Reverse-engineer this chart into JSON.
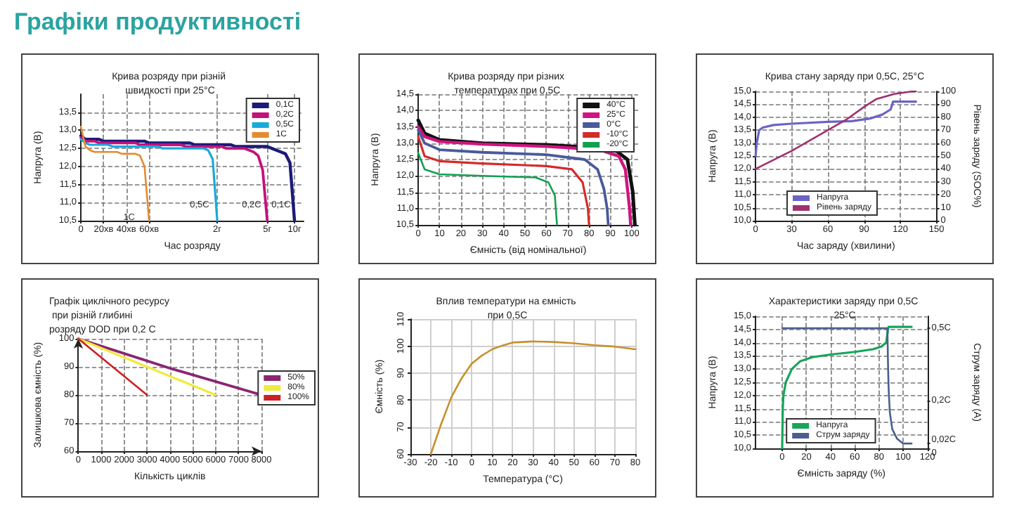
{
  "chart_data": [
    {
      "type": "line",
      "title": "Крива розряду при різній швидкості при 25°C",
      "xlabel": "Час розряду",
      "ylabel": "Напруга (В)",
      "ylim": [
        10.5,
        14
      ],
      "categories": [
        "0",
        null,
        null,
        null,
        null,
        "20хв",
        null,
        null,
        null,
        null,
        "40хв",
        null,
        null,
        null,
        null,
        "60хв",
        null,
        null,
        null,
        null,
        null,
        null,
        null,
        null,
        null,
        null,
        null,
        null,
        null,
        null,
        "2г",
        null,
        null,
        null,
        null,
        null,
        null,
        null,
        null,
        null,
        null,
        "5г",
        null,
        null,
        null,
        null,
        null,
        "10г",
        null,
        null
      ],
      "yticks": [
        {
          "value": 10.5,
          "label": "10,5"
        },
        {
          "value": 11,
          "label": "11,0"
        },
        {
          "value": 11.5,
          "label": "11,5"
        },
        {
          "value": 12,
          "label": "12,0"
        },
        {
          "value": 12.5,
          "label": "12,5"
        },
        {
          "value": 13,
          "label": "13,0"
        },
        {
          "value": 13.5,
          "label": "13,5"
        }
      ],
      "grid": true,
      "legend": "top right",
      "series": [
        {
          "name": "0,1C",
          "color": "#1c1a78",
          "values": [
            12.85,
            12.75,
            12.75,
            12.75,
            12.75,
            12.7,
            12.7,
            12.7,
            12.7,
            12.7,
            12.7,
            12.7,
            12.7,
            12.7,
            12.7,
            12.65,
            12.65,
            12.65,
            12.65,
            12.65,
            12.65,
            12.65,
            12.65,
            12.65,
            12.65,
            12.6,
            12.6,
            12.6,
            12.6,
            12.6,
            12.6,
            12.6,
            12.6,
            12.6,
            12.55,
            12.55,
            12.55,
            12.55,
            12.55,
            12.55,
            12.55,
            12.55,
            12.5,
            12.45,
            12.4,
            12.35,
            12.1,
            10.5,
            null,
            null
          ]
        },
        {
          "name": "0,2C",
          "color": "#c4117c",
          "values": [
            12.8,
            12.7,
            12.7,
            12.7,
            12.65,
            12.65,
            12.65,
            12.65,
            12.65,
            12.65,
            12.65,
            12.65,
            12.65,
            12.6,
            12.6,
            12.6,
            12.6,
            12.6,
            12.6,
            12.6,
            12.6,
            12.6,
            12.6,
            12.55,
            12.55,
            12.55,
            12.55,
            12.55,
            12.55,
            12.55,
            12.55,
            12.55,
            12.5,
            12.5,
            12.5,
            12.5,
            12.5,
            12.45,
            12.4,
            12.3,
            11.9,
            10.5,
            null,
            null,
            null,
            null,
            null,
            null,
            null,
            null
          ]
        },
        {
          "name": "0,5C",
          "color": "#19a9dc",
          "values": [
            12.75,
            12.65,
            12.6,
            12.6,
            12.6,
            12.6,
            12.6,
            12.55,
            12.55,
            12.55,
            12.55,
            12.55,
            12.55,
            12.55,
            12.55,
            12.55,
            12.55,
            12.55,
            12.5,
            12.5,
            12.5,
            12.5,
            12.5,
            12.5,
            12.5,
            12.5,
            12.5,
            12.5,
            12.45,
            12.2,
            10.5,
            null,
            null,
            null,
            null,
            null,
            null,
            null,
            null,
            null,
            null,
            null,
            null,
            null,
            null,
            null,
            null,
            null,
            null,
            null
          ]
        },
        {
          "name": "1C",
          "color": "#e68a2e",
          "values": [
            13.1,
            12.55,
            12.45,
            12.4,
            12.4,
            12.4,
            12.4,
            12.4,
            12.4,
            12.35,
            12.35,
            12.35,
            12.35,
            12.3,
            12.0,
            10.5,
            null,
            null,
            null,
            null,
            null,
            null,
            null,
            null,
            null,
            null,
            null,
            null,
            null,
            null,
            null,
            null,
            null,
            null,
            null,
            null,
            null,
            null,
            null,
            null,
            null,
            null,
            null,
            null,
            null,
            null,
            null,
            null,
            null,
            null
          ]
        }
      ],
      "annotations": [
        "Графіки продуктивності",
        "1C",
        "0,5C",
        "0,2C",
        "0,1C"
      ]
    },
    {
      "type": "line",
      "title": "Крива розряду при різних температурах при 0,5C",
      "xlabel": "Ємність (від номінальної)",
      "ylabel": "Напруга (В)",
      "xlim": [
        0,
        103
      ],
      "ylim": [
        10.5,
        14.5
      ],
      "xticks": [
        0,
        10,
        20,
        30,
        40,
        50,
        60,
        70,
        80,
        90,
        100
      ],
      "yticks": [
        {
          "value": 10.5,
          "label": "10,5"
        },
        {
          "value": 11,
          "label": "11,0"
        },
        {
          "value": 11.5,
          "label": "11,5"
        },
        {
          "value": 12,
          "label": "12,0"
        },
        {
          "value": 12.5,
          "label": "12,5"
        },
        {
          "value": 13,
          "label": "13,0"
        },
        {
          "value": 13.5,
          "label": "13,5"
        },
        {
          "value": 14,
          "label": "14,0"
        },
        {
          "value": 14.5,
          "label": "14,5"
        }
      ],
      "grid": true,
      "legend": "top right",
      "series": [
        {
          "name": "40°C",
          "color": "#111111",
          "x": [
            0,
            3,
            10,
            30,
            60,
            85,
            93,
            98,
            100.5,
            101.5
          ],
          "values": [
            13.7,
            13.3,
            13.1,
            13.0,
            12.95,
            12.85,
            12.75,
            12.5,
            11.5,
            10.5
          ]
        },
        {
          "name": "25°C",
          "color": "#d0157f",
          "x": [
            0,
            3,
            10,
            30,
            60,
            85,
            94,
            97,
            99,
            99.5
          ],
          "values": [
            13.5,
            13.2,
            13.05,
            12.97,
            12.9,
            12.8,
            12.6,
            12.2,
            11.0,
            10.5
          ]
        },
        {
          "name": "0°C",
          "color": "#4a5a9a",
          "x": [
            0,
            3,
            10,
            30,
            60,
            78,
            84,
            87,
            88.5,
            89
          ],
          "values": [
            13.4,
            13.0,
            12.8,
            12.72,
            12.65,
            12.5,
            12.2,
            11.6,
            11.0,
            10.5
          ]
        },
        {
          "name": "-10°C",
          "color": "#d42a2a",
          "x": [
            0,
            3,
            10,
            30,
            60,
            72,
            77,
            79.5,
            80
          ],
          "values": [
            13.2,
            12.6,
            12.45,
            12.38,
            12.3,
            12.2,
            11.8,
            11.0,
            10.5
          ]
        },
        {
          "name": "-20°C",
          "color": "#12a050",
          "x": [
            0,
            3,
            10,
            30,
            55,
            61,
            64,
            65
          ],
          "values": [
            12.7,
            12.2,
            12.05,
            12.0,
            11.95,
            11.8,
            11.4,
            10.5
          ]
        }
      ]
    },
    {
      "type": "line",
      "title": "Крива стану заряду при 0,5C, 25°C",
      "xlabel": "Час заряду (хвилини)",
      "ylabel": "Напруга (В)",
      "y2label": "Рівень заряду (SOC%)",
      "xlim": [
        0,
        150
      ],
      "ylim": [
        10,
        15
      ],
      "y2lim": [
        0,
        100
      ],
      "xticks": [
        0,
        30,
        60,
        90,
        120,
        150
      ],
      "yticks": [
        {
          "value": 10,
          "label": "10,0"
        },
        {
          "value": 10.5,
          "label": "10,5"
        },
        {
          "value": 11,
          "label": "11,0"
        },
        {
          "value": 11.5,
          "label": "11,5"
        },
        {
          "value": 12,
          "label": "12,0"
        },
        {
          "value": 12.5,
          "label": "12,5"
        },
        {
          "value": 13,
          "label": "13,0"
        },
        {
          "value": 13.5,
          "label": "13,5"
        },
        {
          "value": 14,
          "label": "14,0"
        },
        {
          "value": 14.5,
          "label": "14,5"
        },
        {
          "value": 15,
          "label": "15,0"
        }
      ],
      "y2ticks": [
        0,
        10,
        20,
        30,
        40,
        50,
        60,
        70,
        80,
        90,
        100
      ],
      "grid": true,
      "legend": "bottom",
      "series": [
        {
          "name": "Напруга",
          "color": "#6b63c6",
          "x": [
            0,
            1,
            3,
            6,
            15,
            30,
            60,
            80,
            95,
            105,
            112,
            114,
            120,
            133
          ],
          "values": [
            12.5,
            13.0,
            13.5,
            13.6,
            13.7,
            13.75,
            13.82,
            13.85,
            13.95,
            14.1,
            14.3,
            14.6,
            14.6,
            14.6
          ]
        },
        {
          "name": "Рівень заряду",
          "color": "#a0306e",
          "axis": "y2",
          "x": [
            0,
            30,
            60,
            75,
            90,
            100,
            115,
            130,
            133
          ],
          "values": [
            40,
            54,
            70,
            78,
            88,
            94,
            98,
            100,
            100
          ]
        }
      ]
    },
    {
      "type": "line",
      "title": "Графік циклічного ресурсу при різній глибині розряду DOD при 0,2 C",
      "xlabel": "Кількість циклів",
      "ylabel": "Залишкова ємність (%)",
      "xlim": [
        0,
        8000
      ],
      "ylim": [
        60,
        100
      ],
      "xticks": [
        0,
        1000,
        2000,
        3000,
        4000,
        5000,
        6000,
        7000,
        8000
      ],
      "yticks": [
        60,
        70,
        80,
        90,
        100
      ],
      "grid": true,
      "legend": "right",
      "series": [
        {
          "name": "50%",
          "color": "#8b2570",
          "x": [
            0,
            4000,
            8000
          ],
          "values": [
            100,
            89.5,
            80
          ]
        },
        {
          "name": "80%",
          "color": "#f2ea3c",
          "x": [
            0,
            3000,
            6000
          ],
          "values": [
            100,
            90,
            80
          ]
        },
        {
          "name": "100%",
          "color": "#cc2026",
          "x": [
            0,
            3000
          ],
          "values": [
            100,
            80
          ]
        }
      ]
    },
    {
      "type": "line",
      "title": "Вплив температури на ємність при 0,5C",
      "xlabel": "Температура (°C)",
      "ylabel": "Ємність (%)",
      "xlim": [
        -30,
        80
      ],
      "ylim": [
        60,
        110
      ],
      "xticks": [
        -30,
        -20,
        -10,
        0,
        10,
        20,
        30,
        40,
        50,
        60,
        70,
        80
      ],
      "yticks": [
        60,
        70,
        80,
        90,
        100,
        110
      ],
      "grid": true,
      "series": [
        {
          "color": "#c8902c",
          "x": [
            -20,
            -15,
            -10,
            -5,
            0,
            5,
            10,
            15,
            20,
            30,
            40,
            50,
            60,
            70,
            80
          ],
          "values": [
            60,
            71,
            81,
            88,
            93.5,
            96.5,
            98.8,
            100.2,
            101.3,
            101.7,
            101.5,
            101,
            100.3,
            99.8,
            98.8
          ]
        }
      ]
    },
    {
      "type": "line",
      "title": "Характеристики заряду при 0,5C 25°C",
      "xlabel": "Ємність заряду (%)",
      "ylabel": "Напруга (В)",
      "y2label": "Струм заряду (A)",
      "xlim": [
        -22,
        120
      ],
      "ylim": [
        10,
        15
      ],
      "y2lim": [
        0,
        0.55
      ],
      "xticks": [
        0,
        20,
        40,
        60,
        80,
        100,
        120
      ],
      "yticks": [
        {
          "value": 10,
          "label": "10,0"
        },
        {
          "value": 10.5,
          "label": "10,5"
        },
        {
          "value": 11,
          "label": "11,0"
        },
        {
          "value": 11.5,
          "label": "11,5"
        },
        {
          "value": 12,
          "label": "12,0"
        },
        {
          "value": 12.5,
          "label": "12,5"
        },
        {
          "value": 13,
          "label": "13,0"
        },
        {
          "value": 13.5,
          "label": "13,5"
        },
        {
          "value": 14,
          "label": "14,0"
        },
        {
          "value": 14.5,
          "label": "14,5"
        },
        {
          "value": 15,
          "label": "15,0"
        }
      ],
      "y2ticks": [
        0,
        {
          "value": 0.02,
          "label": "0,02C"
        },
        {
          "value": 0.2,
          "label": "0,2C"
        },
        {
          "value": 0.5,
          "label": "0,5C"
        }
      ],
      "grid": true,
      "legend": "bottom",
      "series": [
        {
          "name": "Напруга",
          "color": "#17a55a",
          "x": [
            0,
            0.5,
            1,
            3,
            8,
            15,
            25,
            40,
            60,
            75,
            82,
            86,
            87.5,
            88,
            107
          ],
          "values": [
            10.0,
            11.5,
            12.0,
            12.5,
            13.0,
            13.3,
            13.45,
            13.55,
            13.65,
            13.75,
            13.85,
            14.0,
            14.5,
            14.6,
            14.6
          ]
        },
        {
          "name": "Струм заряду",
          "color": "#4a5f8e",
          "axis": "y2",
          "x": [
            0,
            87,
            87.5,
            88,
            89,
            91,
            95,
            100,
            107
          ],
          "values": [
            0.5,
            0.5,
            0.35,
            0.25,
            0.15,
            0.08,
            0.04,
            0.02,
            0.02
          ]
        }
      ]
    }
  ]
}
